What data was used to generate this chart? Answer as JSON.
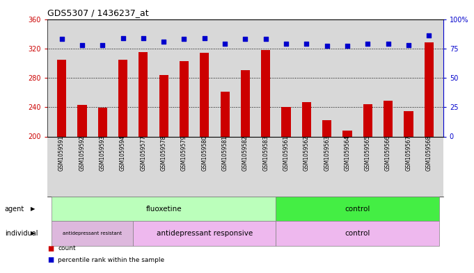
{
  "title": "GDS5307 / 1436237_at",
  "samples": [
    "GSM1059591",
    "GSM1059592",
    "GSM1059593",
    "GSM1059594",
    "GSM1059577",
    "GSM1059578",
    "GSM1059579",
    "GSM1059580",
    "GSM1059581",
    "GSM1059582",
    "GSM1059583",
    "GSM1059561",
    "GSM1059562",
    "GSM1059563",
    "GSM1059564",
    "GSM1059565",
    "GSM1059566",
    "GSM1059567",
    "GSM1059568"
  ],
  "counts": [
    305,
    243,
    239,
    305,
    315,
    284,
    303,
    314,
    261,
    290,
    318,
    240,
    247,
    222,
    208,
    244,
    249,
    235,
    328
  ],
  "percentiles": [
    83,
    78,
    78,
    84,
    84,
    81,
    83,
    84,
    79,
    83,
    83,
    79,
    79,
    77,
    77,
    79,
    79,
    78,
    86
  ],
  "ymin": 200,
  "ymax": 360,
  "yticks_left": [
    200,
    240,
    280,
    320,
    360
  ],
  "yticks_right": [
    0,
    25,
    50,
    75,
    100
  ],
  "bar_color": "#CC0000",
  "dot_color": "#0000CC",
  "bg_color": "#D8D8D8",
  "agent_fluoxetine_label": "fluoxetine",
  "agent_control_label": "control",
  "individual_resistant_label": "antidepressant resistant",
  "individual_responsive_label": "antidepressant responsive",
  "individual_control_label": "control",
  "agent_label": "agent",
  "individual_label": "individual",
  "legend_count_label": "count",
  "legend_percentile_label": "percentile rank within the sample",
  "fluoxetine_color": "#BBFFBB",
  "control_agent_color": "#44EE44",
  "resistant_color": "#DDB8DD",
  "responsive_color": "#EEB8EE",
  "control_individual_color": "#EEB8EE",
  "n_fluoxetine": 11,
  "n_total": 19
}
